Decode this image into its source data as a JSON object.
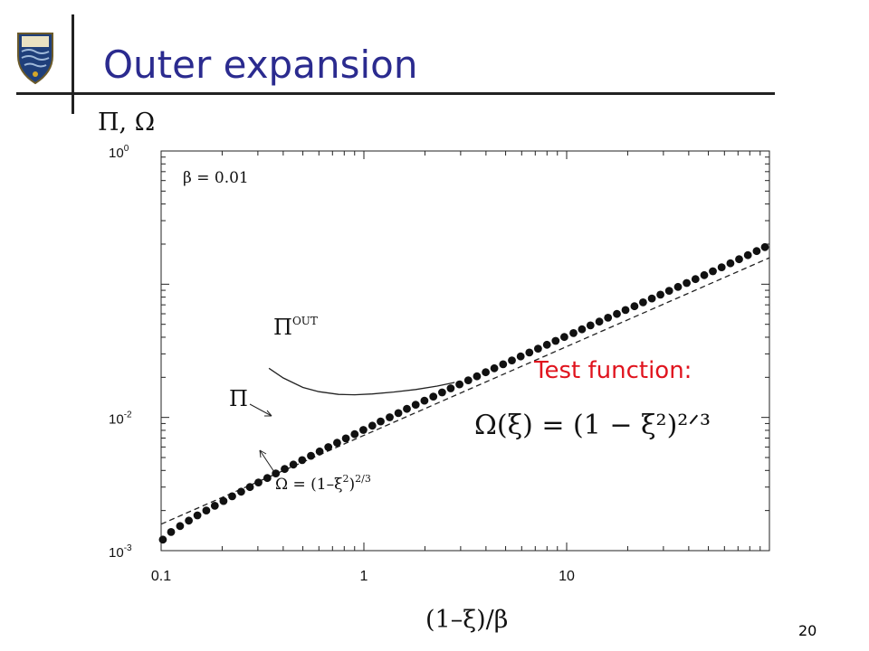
{
  "slide": {
    "title": "Outer expansion",
    "page_number": "20"
  },
  "annotation": {
    "test_label": "Test function:",
    "test_formula": "Ω(ξ) = (1 − ξ²)²ᐟ³",
    "test_color": "#e0141e"
  },
  "colors": {
    "title": "#2b2b8f",
    "axes": "#222222",
    "points": "#111111"
  },
  "chart_data": {
    "type": "scatter",
    "xscale": "log",
    "yscale": "log",
    "xlim": [
      0.1,
      100
    ],
    "ylim": [
      0.001,
      1
    ],
    "xlabel": "(1–ξ)/β",
    "ylabel": "Π, Ω",
    "x_ticks": [
      "0.1",
      "1",
      "10"
    ],
    "y_ticks": [
      {
        "base": "10",
        "exp": "0"
      },
      {
        "base": "10",
        "exp": "-2"
      },
      {
        "base": "10",
        "exp": "-3"
      }
    ],
    "plot_text": "β = 0.01",
    "series": [
      {
        "label": "Π",
        "style": "dots",
        "x": [
          0.102,
          0.112,
          0.124,
          0.137,
          0.151,
          0.167,
          0.184,
          0.203,
          0.224,
          0.248,
          0.274,
          0.302,
          0.334,
          0.368,
          0.407,
          0.449,
          0.496,
          0.548,
          0.605,
          0.668,
          0.738,
          0.815,
          0.9,
          0.994,
          1.1,
          1.21,
          1.34,
          1.48,
          1.63,
          1.8,
          1.99,
          2.2,
          2.43,
          2.68,
          2.96,
          3.27,
          3.61,
          3.99,
          4.4,
          4.86,
          5.37,
          5.93,
          6.55,
          7.23,
          7.99,
          8.82,
          9.74,
          10.8,
          11.9,
          13.1,
          14.5,
          16.0,
          17.7,
          19.5,
          21.6,
          23.8,
          26.3,
          29.0,
          32.0,
          35.4,
          39.1,
          43.2,
          47.7,
          52.6,
          58.1,
          64.2,
          70.9,
          78.3,
          86.5,
          95.0
        ],
        "y": [
          0.00121,
          0.00138,
          0.00153,
          0.00168,
          0.00184,
          0.002,
          0.00217,
          0.00236,
          0.00256,
          0.00277,
          0.003,
          0.00325,
          0.00351,
          0.0038,
          0.0041,
          0.00443,
          0.00478,
          0.00515,
          0.00555,
          0.00599,
          0.00645,
          0.00695,
          0.00748,
          0.00806,
          0.00867,
          0.00933,
          0.01003,
          0.01078,
          0.01159,
          0.01245,
          0.01337,
          0.01435,
          0.0154,
          0.01652,
          0.01772,
          0.019,
          0.02036,
          0.02182,
          0.02338,
          0.02504,
          0.0268,
          0.02869,
          0.0307,
          0.03284,
          0.03513,
          0.03756,
          0.04016,
          0.04293,
          0.04589,
          0.04905,
          0.05242,
          0.05602,
          0.05987,
          0.06398,
          0.06837,
          0.07307,
          0.0781,
          0.08349,
          0.08926,
          0.09545,
          0.1021,
          0.1092,
          0.1169,
          0.1251,
          0.134,
          0.1436,
          0.154,
          0.1652,
          0.1773,
          0.19
        ]
      },
      {
        "label": "Π^OUT",
        "label_base": "Π",
        "label_sup": "OUT",
        "style": "solid",
        "x": [
          0.34,
          0.4,
          0.5,
          0.6,
          0.75,
          0.9,
          1.1,
          1.4,
          1.8,
          2.3,
          2.8
        ],
        "y": [
          0.0234,
          0.0198,
          0.0168,
          0.0156,
          0.0149,
          0.0148,
          0.015,
          0.0155,
          0.0162,
          0.0172,
          0.0183
        ]
      },
      {
        "label": "Ω = (1–ξ²)^2/3",
        "label_text": "Ω = (1–ξ",
        "label_sup1": "2",
        "label_mid": ")",
        "label_sup2": "2/3",
        "style": "dashed",
        "x": [
          0.1,
          100
        ],
        "y": [
          0.00158,
          0.158
        ]
      }
    ]
  }
}
